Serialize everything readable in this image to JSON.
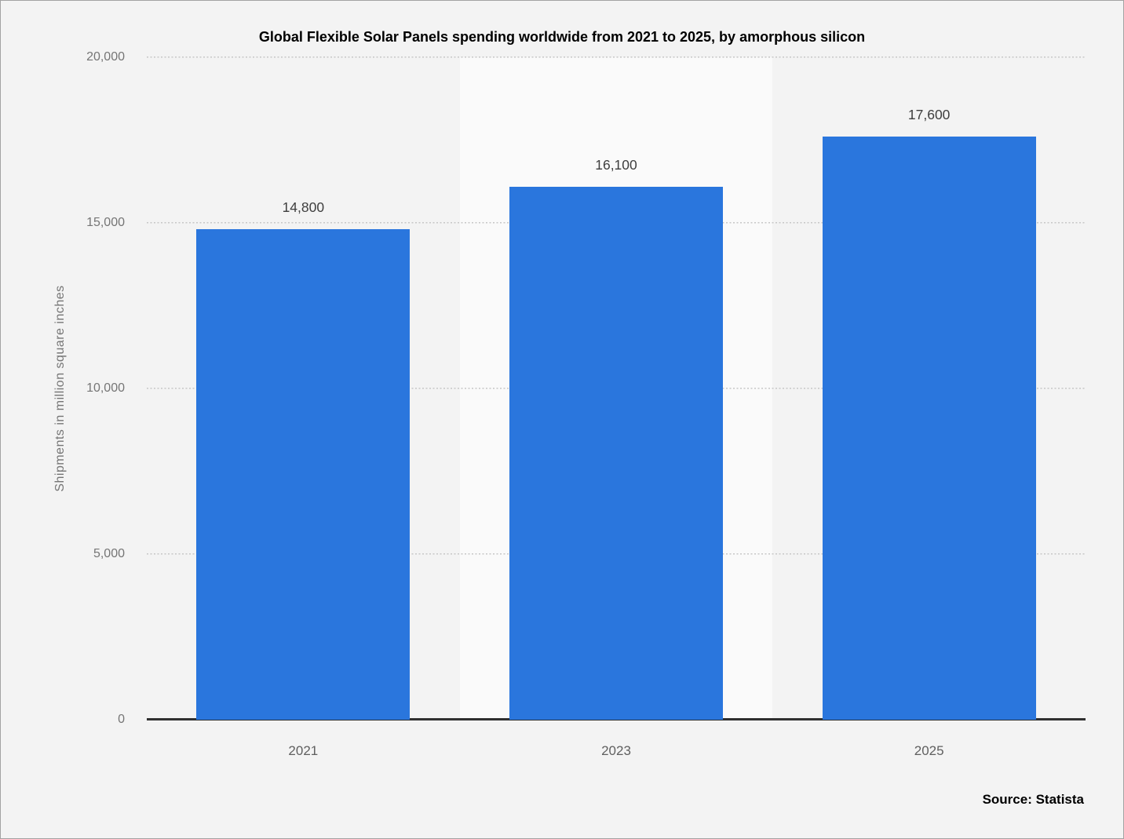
{
  "chart_data": {
    "type": "bar",
    "title": "Global Flexible Solar Panels spending worldwide from 2021 to 2025, by amorphous silicon",
    "categories": [
      "2021",
      "2023",
      "2025"
    ],
    "values": [
      14800,
      16100,
      17600
    ],
    "value_labels": [
      "14,800",
      "16,100",
      "17,600"
    ],
    "xlabel": "",
    "ylabel": "Shipments in million square inches",
    "ylim": [
      0,
      20000
    ],
    "yticks": [
      0,
      5000,
      10000,
      15000,
      20000
    ],
    "ytick_labels": [
      "0",
      "5,000",
      "10,000",
      "15,000",
      "20,000"
    ],
    "grid": "horizontal-dotted",
    "legend": "none",
    "bar_color": "#2a76dd",
    "highlight_band_index": 1,
    "source_label": "Source: Statista"
  }
}
